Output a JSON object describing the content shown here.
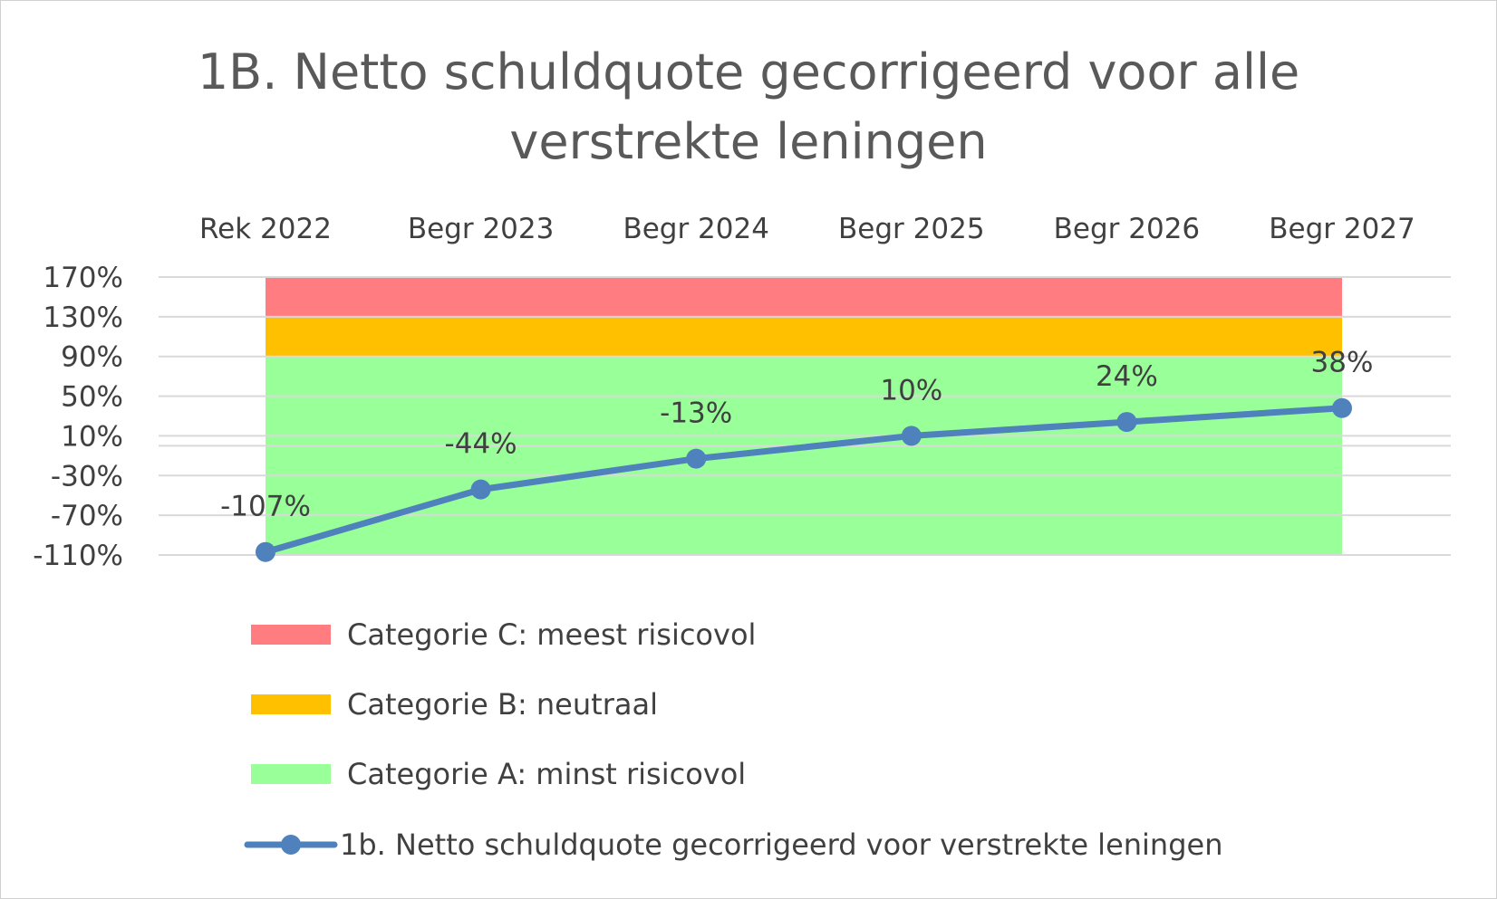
{
  "chart_data": {
    "type": "line",
    "title_lines": [
      "1B. Netto schuldquote gecorrigeerd voor alle",
      "verstrekte leningen"
    ],
    "categories": [
      "Rek 2022",
      "Begr 2023",
      "Begr 2024",
      "Begr 2025",
      "Begr 2026",
      "Begr 2027"
    ],
    "x_axis_position": "top",
    "ylim": [
      -110,
      170
    ],
    "yticks": [
      170,
      130,
      90,
      50,
      10,
      -30,
      -70,
      -110
    ],
    "ytick_labels": [
      "170%",
      "130%",
      "90%",
      "50%",
      "10%",
      "-30%",
      "-70%",
      "-110%"
    ],
    "grid": true,
    "bands": [
      {
        "name": "Categorie C: meest risicovol",
        "from": 130,
        "to": 170,
        "color": "#FF7C80"
      },
      {
        "name": "Categorie B: neutraal",
        "from": 90,
        "to": 130,
        "color": "#FFC000"
      },
      {
        "name": "Categorie A: minst risicovol",
        "from": -110,
        "to": 90,
        "color": "#99FF99"
      }
    ],
    "series": [
      {
        "name": "1b. Netto schuldquote gecorrigeerd voor verstrekte leningen",
        "values": [
          -107,
          -44,
          -13,
          10,
          24,
          38
        ],
        "data_labels": [
          "-107%",
          "-44%",
          "-13%",
          "10%",
          "24%",
          "38%"
        ],
        "color": "#4F81BD"
      }
    ],
    "legend_position": "bottom"
  }
}
